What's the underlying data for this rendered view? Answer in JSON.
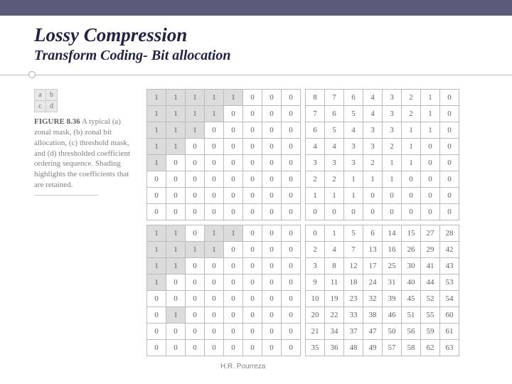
{
  "title": "Lossy Compression",
  "subtitle": "Transform Coding- Bit allocation",
  "abcd": [
    [
      "a",
      "b"
    ],
    [
      "c",
      "d"
    ]
  ],
  "figure_label": "FIGURE 8.36",
  "caption": "A typical (a) zonal mask, (b) zonal bit allocation, (c) threshold mask, and (d) thresholded coefficient ordering sequence. Shading highlights the coefficients that are retained.",
  "footer": "H.R. Pourreza",
  "grid_a": {
    "rows": [
      [
        1,
        1,
        1,
        1,
        1,
        0,
        0,
        0
      ],
      [
        1,
        1,
        1,
        1,
        0,
        0,
        0,
        0
      ],
      [
        1,
        1,
        1,
        0,
        0,
        0,
        0,
        0
      ],
      [
        1,
        1,
        0,
        0,
        0,
        0,
        0,
        0
      ],
      [
        1,
        0,
        0,
        0,
        0,
        0,
        0,
        0
      ],
      [
        0,
        0,
        0,
        0,
        0,
        0,
        0,
        0
      ],
      [
        0,
        0,
        0,
        0,
        0,
        0,
        0,
        0
      ],
      [
        0,
        0,
        0,
        0,
        0,
        0,
        0,
        0
      ]
    ],
    "shade": [
      [
        1,
        1,
        1,
        1,
        1,
        0,
        0,
        0
      ],
      [
        1,
        1,
        1,
        1,
        0,
        0,
        0,
        0
      ],
      [
        1,
        1,
        1,
        0,
        0,
        0,
        0,
        0
      ],
      [
        1,
        1,
        0,
        0,
        0,
        0,
        0,
        0
      ],
      [
        1,
        0,
        0,
        0,
        0,
        0,
        0,
        0
      ],
      [
        0,
        0,
        0,
        0,
        0,
        0,
        0,
        0
      ],
      [
        0,
        0,
        0,
        0,
        0,
        0,
        0,
        0
      ],
      [
        0,
        0,
        0,
        0,
        0,
        0,
        0,
        0
      ]
    ]
  },
  "grid_b": {
    "rows": [
      [
        8,
        7,
        6,
        4,
        3,
        2,
        1,
        0
      ],
      [
        7,
        6,
        5,
        4,
        3,
        2,
        1,
        0
      ],
      [
        6,
        5,
        4,
        3,
        3,
        1,
        1,
        0
      ],
      [
        4,
        4,
        3,
        3,
        2,
        1,
        0,
        0
      ],
      [
        3,
        3,
        3,
        2,
        1,
        1,
        0,
        0
      ],
      [
        2,
        2,
        1,
        1,
        1,
        0,
        0,
        0
      ],
      [
        1,
        1,
        1,
        0,
        0,
        0,
        0,
        0
      ],
      [
        0,
        0,
        0,
        0,
        0,
        0,
        0,
        0
      ]
    ],
    "shade": [
      [
        0,
        0,
        0,
        0,
        0,
        0,
        0,
        0
      ],
      [
        0,
        0,
        0,
        0,
        0,
        0,
        0,
        0
      ],
      [
        0,
        0,
        0,
        0,
        0,
        0,
        0,
        0
      ],
      [
        0,
        0,
        0,
        0,
        0,
        0,
        0,
        0
      ],
      [
        0,
        0,
        0,
        0,
        0,
        0,
        0,
        0
      ],
      [
        0,
        0,
        0,
        0,
        0,
        0,
        0,
        0
      ],
      [
        0,
        0,
        0,
        0,
        0,
        0,
        0,
        0
      ],
      [
        0,
        0,
        0,
        0,
        0,
        0,
        0,
        0
      ]
    ]
  },
  "grid_c": {
    "rows": [
      [
        1,
        1,
        0,
        1,
        1,
        0,
        0,
        0
      ],
      [
        1,
        1,
        1,
        1,
        0,
        0,
        0,
        0
      ],
      [
        1,
        1,
        0,
        0,
        0,
        0,
        0,
        0
      ],
      [
        1,
        0,
        0,
        0,
        0,
        0,
        0,
        0
      ],
      [
        0,
        0,
        0,
        0,
        0,
        0,
        0,
        0
      ],
      [
        0,
        1,
        0,
        0,
        0,
        0,
        0,
        0
      ],
      [
        0,
        0,
        0,
        0,
        0,
        0,
        0,
        0
      ],
      [
        0,
        0,
        0,
        0,
        0,
        0,
        0,
        0
      ]
    ],
    "shade": [
      [
        1,
        1,
        0,
        1,
        1,
        0,
        0,
        0
      ],
      [
        1,
        1,
        1,
        1,
        0,
        0,
        0,
        0
      ],
      [
        1,
        1,
        0,
        0,
        0,
        0,
        0,
        0
      ],
      [
        1,
        0,
        0,
        0,
        0,
        0,
        0,
        0
      ],
      [
        0,
        0,
        0,
        0,
        0,
        0,
        0,
        0
      ],
      [
        0,
        1,
        0,
        0,
        0,
        0,
        0,
        0
      ],
      [
        0,
        0,
        0,
        0,
        0,
        0,
        0,
        0
      ],
      [
        0,
        0,
        0,
        0,
        0,
        0,
        0,
        0
      ]
    ]
  },
  "grid_d": {
    "rows": [
      [
        0,
        1,
        5,
        6,
        14,
        15,
        27,
        28
      ],
      [
        2,
        4,
        7,
        13,
        16,
        26,
        29,
        42
      ],
      [
        3,
        8,
        12,
        17,
        25,
        30,
        41,
        43
      ],
      [
        9,
        11,
        18,
        24,
        31,
        40,
        44,
        53
      ],
      [
        10,
        19,
        23,
        32,
        39,
        45,
        52,
        54
      ],
      [
        20,
        22,
        33,
        38,
        46,
        51,
        55,
        60
      ],
      [
        21,
        34,
        37,
        47,
        50,
        56,
        59,
        61
      ],
      [
        35,
        36,
        48,
        49,
        57,
        58,
        62,
        63
      ]
    ],
    "shade": [
      [
        0,
        0,
        0,
        0,
        0,
        0,
        0,
        0
      ],
      [
        0,
        0,
        0,
        0,
        0,
        0,
        0,
        0
      ],
      [
        0,
        0,
        0,
        0,
        0,
        0,
        0,
        0
      ],
      [
        0,
        0,
        0,
        0,
        0,
        0,
        0,
        0
      ],
      [
        0,
        0,
        0,
        0,
        0,
        0,
        0,
        0
      ],
      [
        0,
        0,
        0,
        0,
        0,
        0,
        0,
        0
      ],
      [
        0,
        0,
        0,
        0,
        0,
        0,
        0,
        0
      ],
      [
        0,
        0,
        0,
        0,
        0,
        0,
        0,
        0
      ]
    ]
  }
}
